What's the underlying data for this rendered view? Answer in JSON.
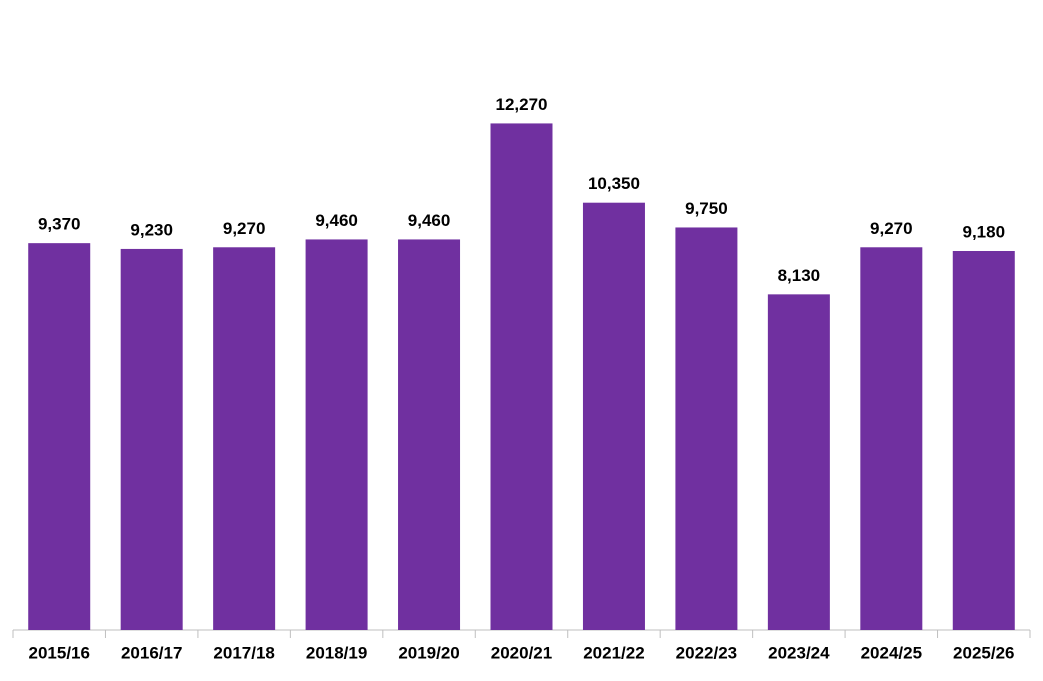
{
  "chart_data": {
    "type": "bar",
    "categories": [
      "2015/16",
      "2016/17",
      "2017/18",
      "2018/19",
      "2019/20",
      "2020/21",
      "2021/22",
      "2022/23",
      "2023/24",
      "2024/25",
      "2025/26"
    ],
    "values": [
      9370,
      9230,
      9270,
      9460,
      9460,
      12270,
      10350,
      9750,
      8130,
      9270,
      9180
    ],
    "value_labels": [
      "9,370",
      "9,230",
      "9,270",
      "9,460",
      "9,460",
      "12,270",
      "10,350",
      "9,750",
      "8,130",
      "9,270",
      "9,180"
    ],
    "color": "#7030a0",
    "ylim": [
      0,
      14000
    ]
  }
}
